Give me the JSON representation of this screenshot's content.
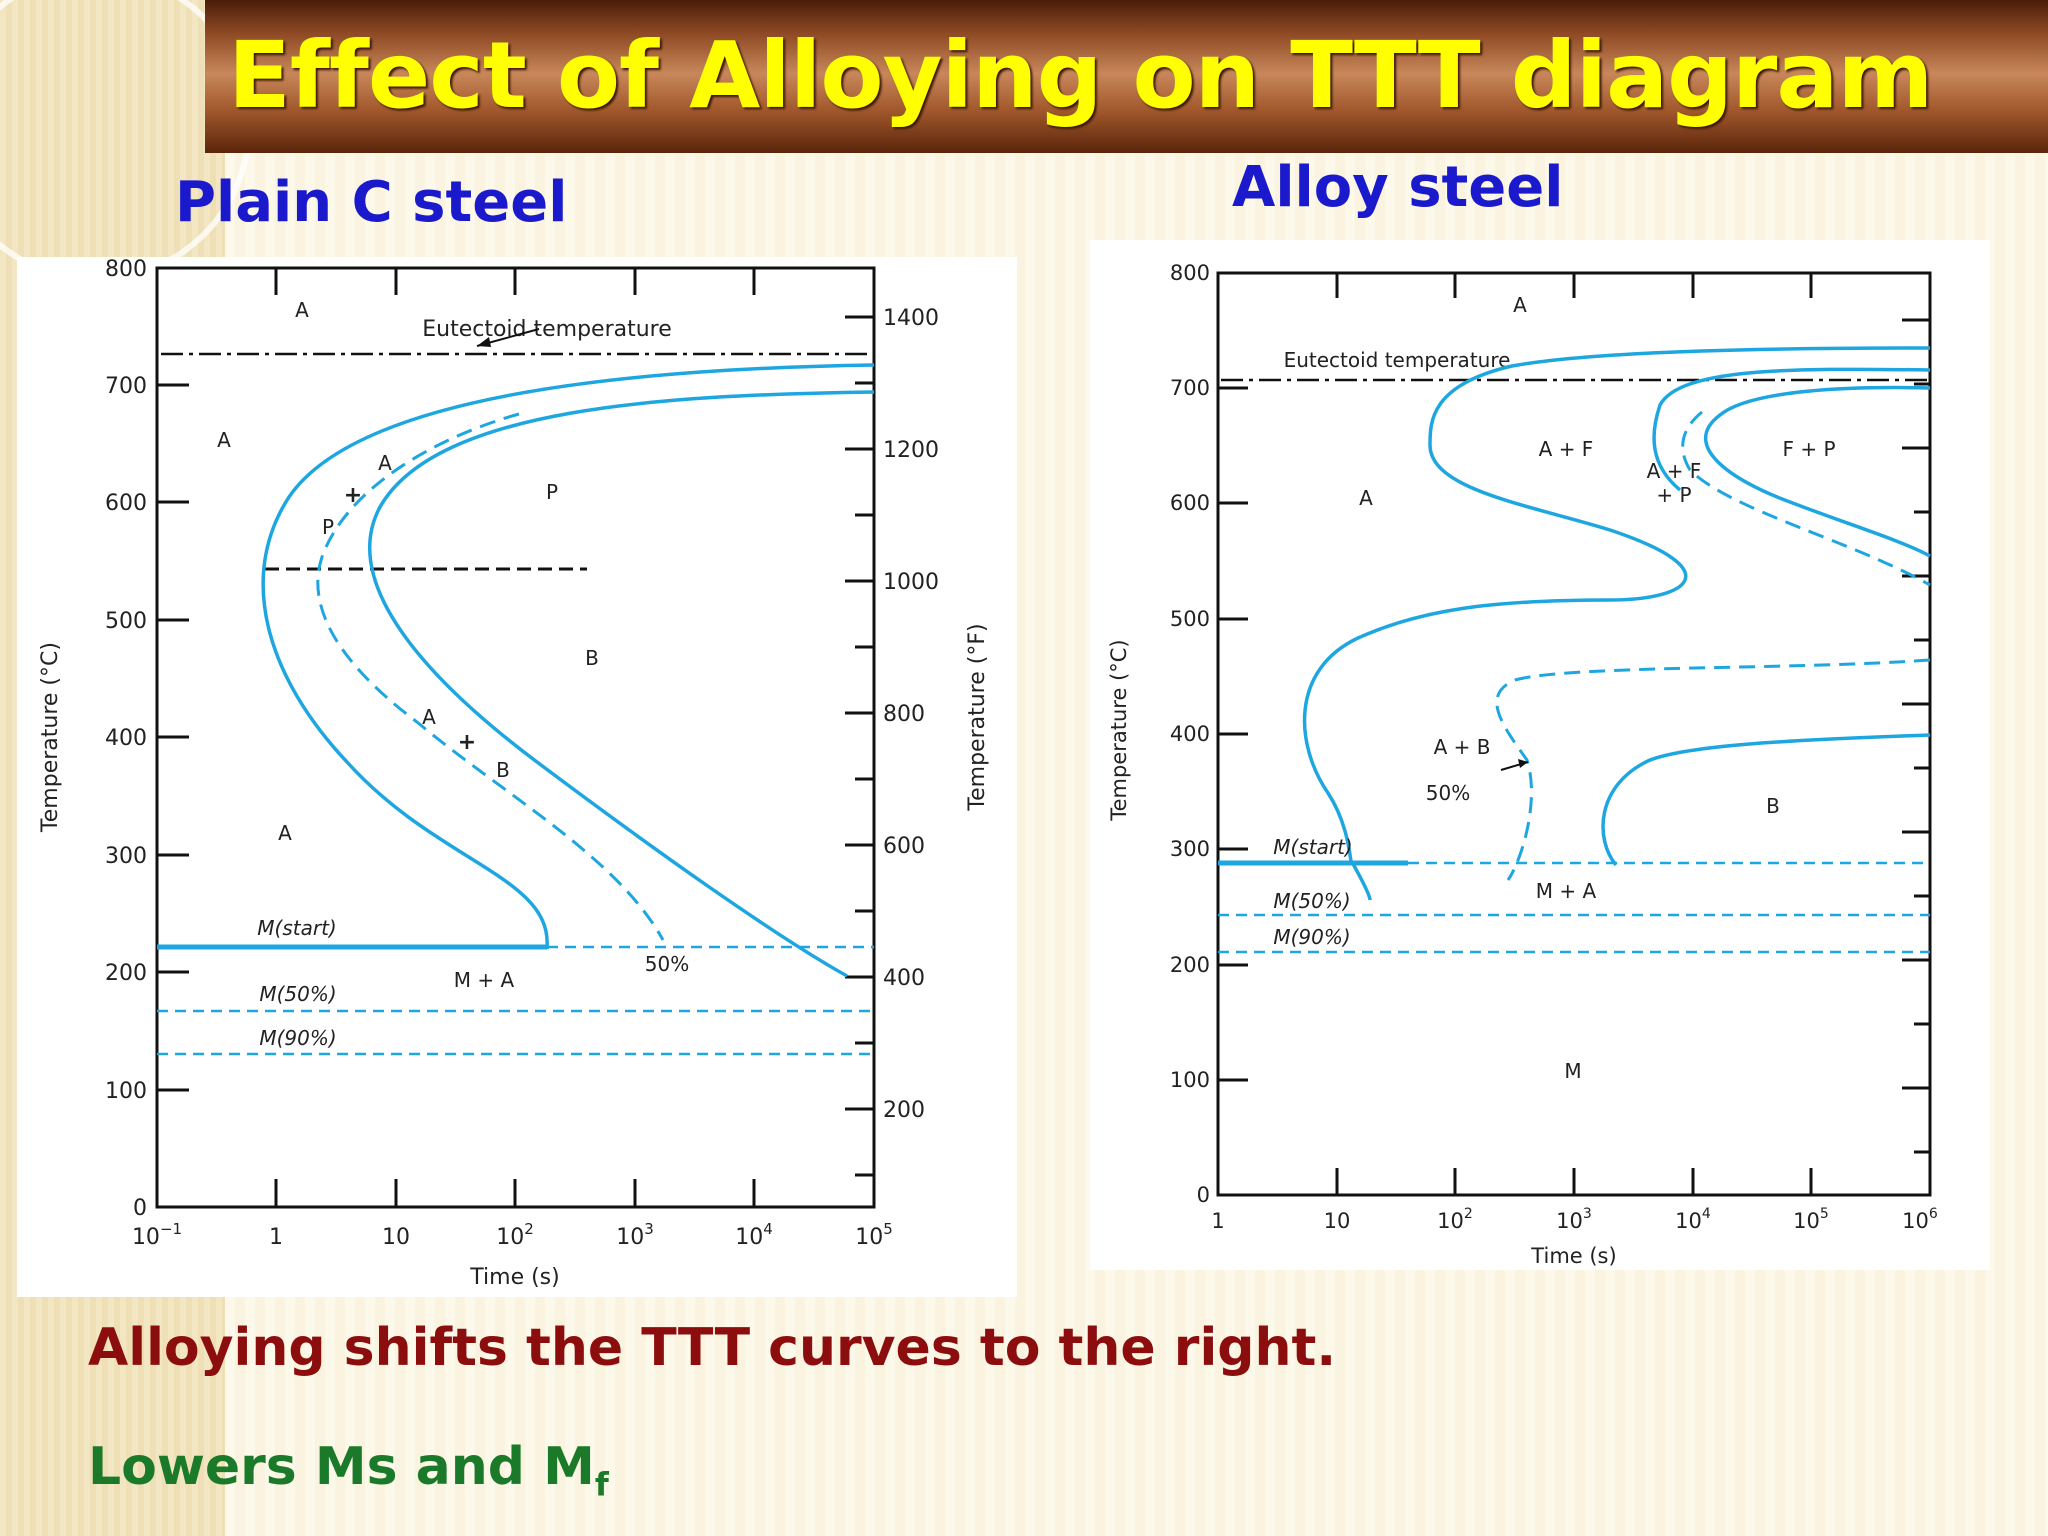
{
  "title": "Effect of Alloying on TTT diagram",
  "left_heading": "Plain C steel",
  "right_heading": "Alloy steel",
  "bottom_line1": "Alloying shifts the TTT curves to the right.",
  "bottom_line2_prefix": "Lowers Ms and M",
  "bottom_line2_sub": "f",
  "colors": {
    "title": "#ffff00",
    "heading": "#1a1acc",
    "line1": "#8b0d0d",
    "line2": "#1a7a2a",
    "curve": "#1ea6e0"
  },
  "left_diagram": {
    "y_ticks_c": [
      "800",
      "700",
      "600",
      "500",
      "400",
      "300",
      "200",
      "100",
      "0"
    ],
    "y_ticks_f": [
      "1400",
      "1200",
      "1000",
      "800",
      "600",
      "400",
      "200"
    ],
    "x_ticks": [
      {
        "base": "10",
        "exp": "−1"
      },
      {
        "base": "1",
        "exp": ""
      },
      {
        "base": "10",
        "exp": ""
      },
      {
        "base": "10",
        "exp": "2"
      },
      {
        "base": "10",
        "exp": "3"
      },
      {
        "base": "10",
        "exp": "4"
      },
      {
        "base": "10",
        "exp": "5"
      }
    ],
    "x_label": "Time (s)",
    "y_label_left": "Temperature (°C)",
    "y_label_right": "Temperature (°F)",
    "eutectoid_label": "Eutectoid temperature",
    "region_labels": {
      "A_top": "A",
      "A_left": "A",
      "A_plus1": "A",
      "plus1": "+",
      "P_small": "P",
      "P_big": "P",
      "B_big": "B",
      "A_plus2": "A",
      "plus2": "+",
      "B_small": "B",
      "A_lower": "A",
      "M_start": "M(start)",
      "M_plus_A": "M + A",
      "fifty": "50%",
      "M_50": "M(50%)",
      "M_90": "M(90%)"
    }
  },
  "right_diagram": {
    "y_ticks_c": [
      "800",
      "700",
      "600",
      "500",
      "400",
      "300",
      "200",
      "100",
      "0"
    ],
    "x_ticks": [
      {
        "base": "1",
        "exp": ""
      },
      {
        "base": "10",
        "exp": ""
      },
      {
        "base": "10",
        "exp": "2"
      },
      {
        "base": "10",
        "exp": "3"
      },
      {
        "base": "10",
        "exp": "4"
      },
      {
        "base": "10",
        "exp": "5"
      },
      {
        "base": "10",
        "exp": "6"
      }
    ],
    "x_label": "Time (s)",
    "y_label_left": "Temperature (°C)",
    "eutectoid_label": "Eutectoid temperature",
    "region_labels": {
      "A_top": "A",
      "A_left": "A",
      "A_plus_F": "A + F",
      "A_plus_F_plus": "A + F",
      "plus_P": "+ P",
      "F_plus_P": "F + P",
      "A_plus_B": "A + B",
      "fifty": "50%",
      "B": "B",
      "M_start": "M(start)",
      "M_plus_A": "M + A",
      "M_50": "M(50%)",
      "M_90": "M(90%)",
      "M": "M"
    }
  }
}
